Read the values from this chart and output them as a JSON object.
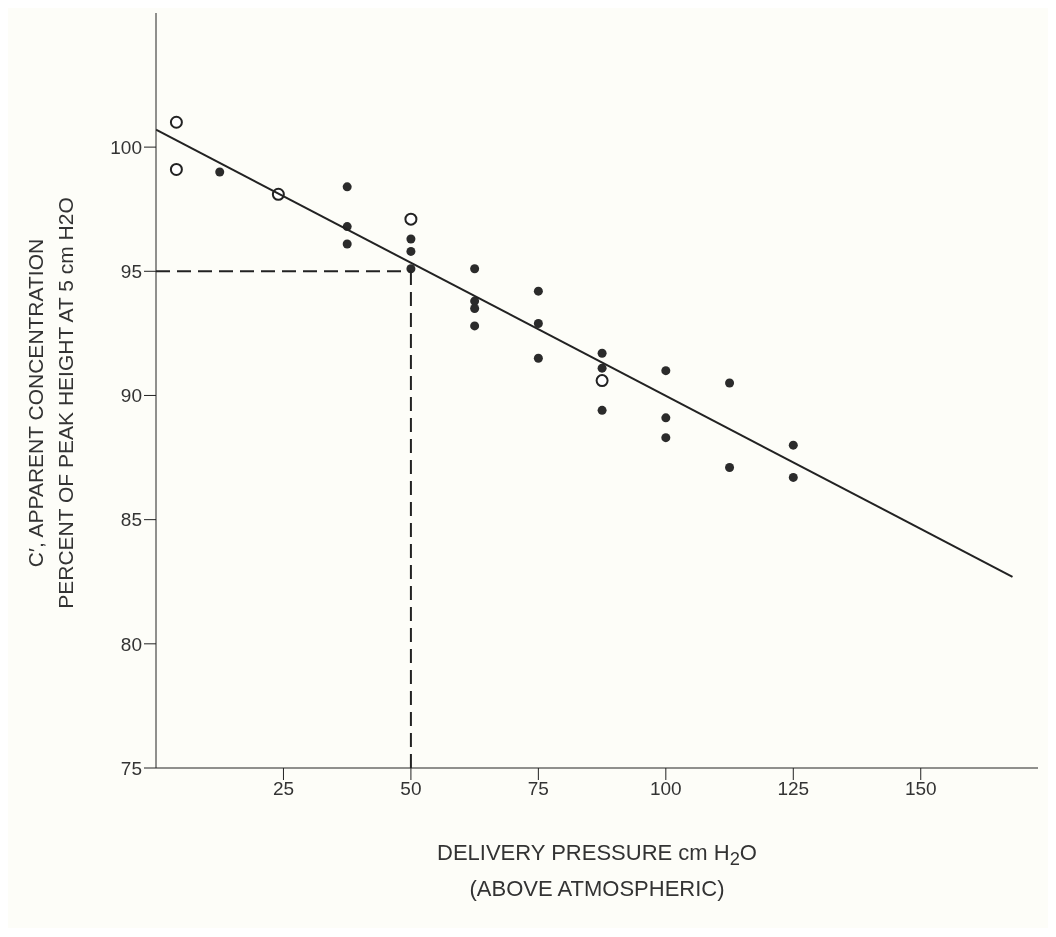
{
  "chart_data": {
    "type": "scatter",
    "xlabel": "DELIVERY PRESSURE cm H$_{2}$O\n(ABOVE ATMOSPHERIC)",
    "ylabel": "C′, APPARENT CONCENTRATION\nPERCENT OF PEAK HEIGHT AT 5 cm H2O",
    "xlim": [
      0,
      173
    ],
    "xticks": [
      25,
      50,
      75,
      100,
      125,
      150
    ],
    "ylim": [
      75,
      105.4
    ],
    "yticks": [
      75,
      80,
      85,
      90,
      95,
      100
    ],
    "grid": false,
    "legend": false,
    "series": [
      {
        "marker": "circle",
        "color": "#2b2b2b",
        "x": [
          12.5,
          37.5,
          37.5,
          37.5,
          50,
          50,
          50,
          62.5,
          62.5,
          62.5,
          62.5,
          75,
          75,
          75,
          87.5,
          87.5,
          87.5,
          100,
          100,
          100,
          112.5,
          112.5,
          125,
          125
        ],
        "values": [
          99.0,
          98.4,
          96.8,
          96.1,
          96.3,
          95.8,
          95.1,
          95.1,
          93.8,
          93.5,
          92.8,
          94.2,
          92.9,
          91.5,
          91.7,
          91.1,
          89.4,
          91.0,
          89.1,
          88.3,
          90.5,
          87.1,
          88.0,
          86.7
        ]
      },
      {
        "marker": "circle",
        "color": "#ffffff",
        "x": [
          4,
          4,
          24,
          50,
          87.5
        ],
        "values": [
          101.0,
          99.1,
          98.1,
          97.1,
          90.6
        ]
      },
      {
        "type": "line",
        "marker": "none",
        "color": "#222222",
        "line_style": "solid",
        "x": [
          0,
          168
        ],
        "values": [
          100.7,
          82.7
        ]
      },
      {
        "type": "line",
        "marker": "none",
        "color": "#222222",
        "line_style": "dashed",
        "x": [
          0,
          50
        ],
        "values": [
          95,
          95
        ]
      },
      {
        "type": "line",
        "marker": "none",
        "color": "#222222",
        "line_style": "dashed",
        "x": [
          50,
          50
        ],
        "values": [
          75,
          95
        ]
      }
    ]
  }
}
